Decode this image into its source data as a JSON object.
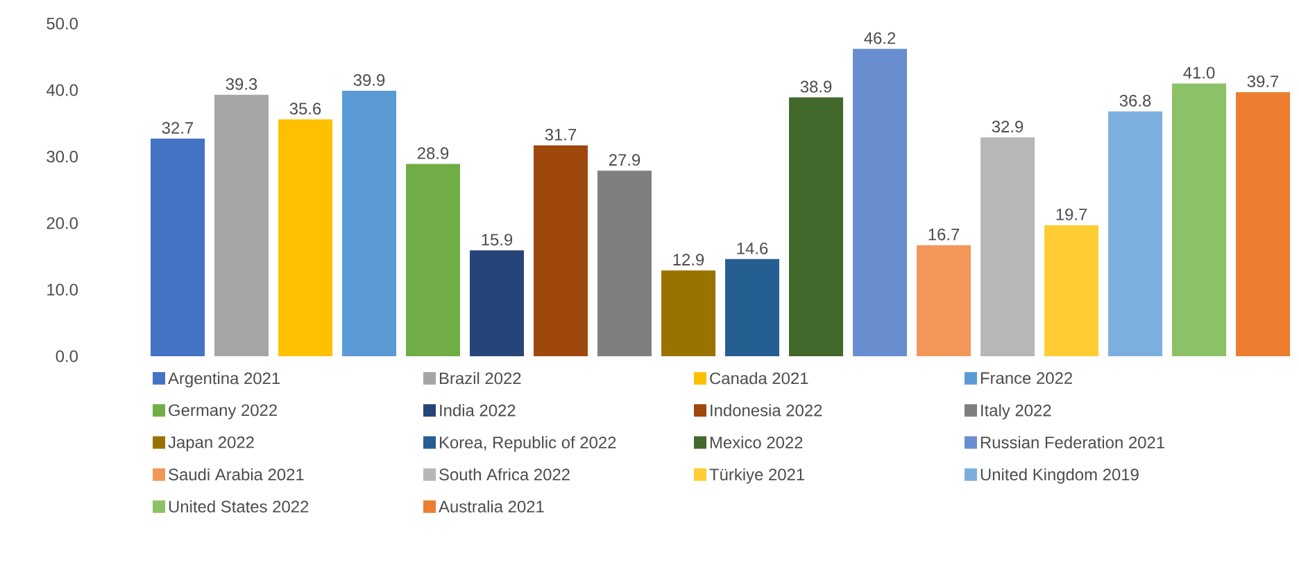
{
  "chart_data": {
    "type": "bar",
    "categories": [
      null
    ],
    "ylim": [
      0,
      50
    ],
    "yticks": [
      {
        "value": 0,
        "label": "0.0"
      },
      {
        "value": 10,
        "label": "10.0"
      },
      {
        "value": 20,
        "label": "20.0"
      },
      {
        "value": 30,
        "label": "30.0"
      },
      {
        "value": 40,
        "label": "40.0"
      },
      {
        "value": 50,
        "label": "50.0"
      }
    ],
    "legend": "bottom",
    "grid": false,
    "series": [
      {
        "name": "Argentina 2021",
        "color": "#4472c4",
        "values": [
          32.7
        ],
        "value_labels": [
          "32.7"
        ]
      },
      {
        "name": "Brazil 2022",
        "color": "#a5a5a5",
        "values": [
          39.3
        ],
        "value_labels": [
          "39.3"
        ]
      },
      {
        "name": "Canada 2021",
        "color": "#ffc000",
        "values": [
          35.6
        ],
        "value_labels": [
          "35.6"
        ]
      },
      {
        "name": "France 2022",
        "color": "#5b9bd5",
        "values": [
          39.9
        ],
        "value_labels": [
          "39.9"
        ]
      },
      {
        "name": "Germany 2022",
        "color": "#70ad47",
        "values": [
          28.9
        ],
        "value_labels": [
          "28.9"
        ]
      },
      {
        "name": "India 2022",
        "color": "#264478",
        "values": [
          15.9
        ],
        "value_labels": [
          "15.9"
        ]
      },
      {
        "name": "Indonesia 2022",
        "color": "#9e480e",
        "values": [
          31.7
        ],
        "value_labels": [
          "31.7"
        ]
      },
      {
        "name": "Italy 2022",
        "color": "#7f7f7f",
        "values": [
          27.9
        ],
        "value_labels": [
          "27.9"
        ]
      },
      {
        "name": "Japan 2022",
        "color": "#997300",
        "values": [
          12.9
        ],
        "value_labels": [
          "12.9"
        ]
      },
      {
        "name": "Korea, Republic of 2022",
        "color": "#255e91",
        "values": [
          14.6
        ],
        "value_labels": [
          "14.6"
        ]
      },
      {
        "name": "Mexico 2022",
        "color": "#43682b",
        "values": [
          38.9
        ],
        "value_labels": [
          "38.9"
        ]
      },
      {
        "name": "Russian Federation 2021",
        "color": "#698ed0",
        "values": [
          46.2
        ],
        "value_labels": [
          "46.2"
        ]
      },
      {
        "name": "Saudi Arabia 2021",
        "color": "#f1975a",
        "values": [
          16.7
        ],
        "value_labels": [
          "16.7"
        ]
      },
      {
        "name": "South Africa 2022",
        "color": "#b7b7b7",
        "values": [
          32.9
        ],
        "value_labels": [
          "32.9"
        ]
      },
      {
        "name": "Türkiye 2021",
        "color": "#ffcd33",
        "values": [
          19.7
        ],
        "value_labels": [
          "19.7"
        ]
      },
      {
        "name": "United Kingdom 2019",
        "color": "#7cafdd",
        "values": [
          36.8
        ],
        "value_labels": [
          "36.8"
        ]
      },
      {
        "name": "United States 2022",
        "color": "#8cc168",
        "values": [
          41.0
        ],
        "value_labels": [
          "41.0"
        ]
      },
      {
        "name": "Australia 2021",
        "color": "#ed7d31",
        "values": [
          39.7
        ],
        "value_labels": [
          "39.7"
        ]
      }
    ]
  }
}
